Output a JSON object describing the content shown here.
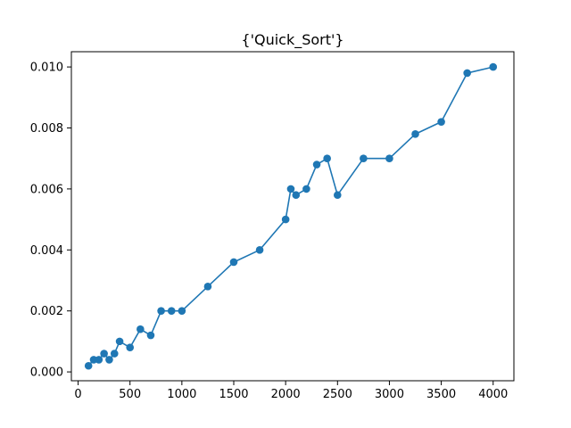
{
  "chart_data": {
    "type": "line",
    "title": "{'Quick_Sort'}",
    "xlabel": "",
    "ylabel": "",
    "xlim": [
      -65,
      4200
    ],
    "ylim": [
      -0.00029,
      0.0105
    ],
    "x_ticks": [
      0,
      500,
      1000,
      1500,
      2000,
      2500,
      3000,
      3500,
      4000
    ],
    "x_tick_labels": [
      "0",
      "500",
      "1000",
      "1500",
      "2000",
      "2500",
      "3000",
      "3500",
      "4000"
    ],
    "y_ticks": [
      0.0,
      0.002,
      0.004,
      0.006,
      0.008,
      0.01
    ],
    "y_tick_labels": [
      "0.000",
      "0.002",
      "0.004",
      "0.006",
      "0.008",
      "0.010"
    ],
    "grid": false,
    "markers": true,
    "series": [
      {
        "color": "#1f77b4",
        "x": [
          100,
          150,
          200,
          250,
          300,
          350,
          400,
          500,
          600,
          700,
          800,
          900,
          1000,
          1250,
          1500,
          1750,
          2000,
          2050,
          2100,
          2200,
          2300,
          2400,
          2500,
          2750,
          3000,
          3250,
          3500,
          3750,
          4000
        ],
        "y": [
          0.0002,
          0.0004,
          0.0004,
          0.0006,
          0.0004,
          0.0006,
          0.001,
          0.0008,
          0.0014,
          0.0012,
          0.002,
          0.002,
          0.002,
          0.0028,
          0.0036,
          0.004,
          0.005,
          0.006,
          0.0058,
          0.006,
          0.0068,
          0.007,
          0.0058,
          0.007,
          0.007,
          0.0078,
          0.0082,
          0.0098,
          0.01
        ]
      }
    ]
  }
}
